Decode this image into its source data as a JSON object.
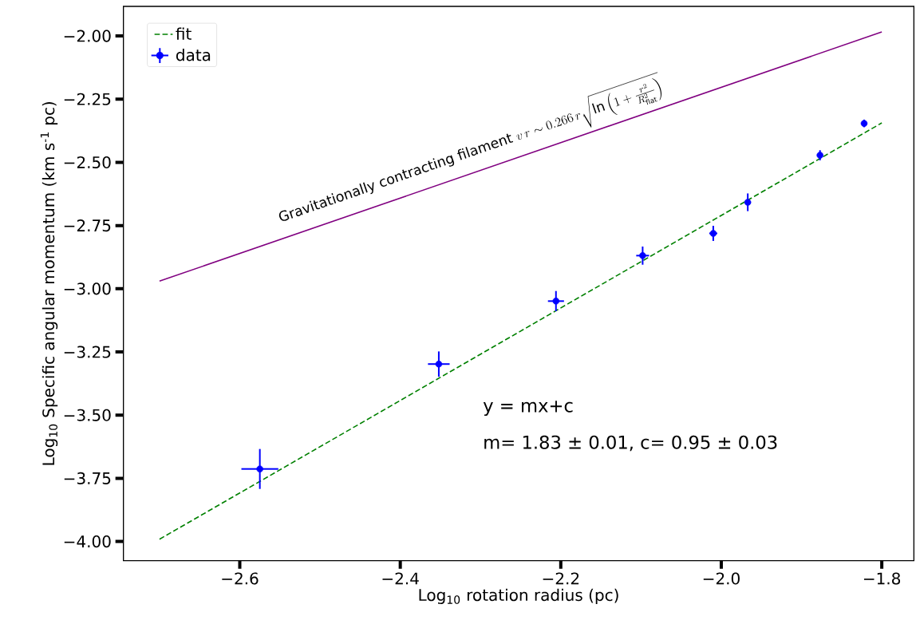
{
  "chart_data": {
    "type": "scatter",
    "xlabel": "Log$_{10}$ rotation radius (pc)",
    "ylabel": "Log$_{10}$ Specific angular momentum (km s$^{-1}$ pc)",
    "xlim": [
      -2.745,
      -1.76
    ],
    "ylim": [
      -4.076,
      -1.883
    ],
    "xticks": [
      {
        "value": -2.6,
        "label": "−2.6"
      },
      {
        "value": -2.4,
        "label": "−2.4"
      },
      {
        "value": -2.2,
        "label": "−2.2"
      },
      {
        "value": -2.0,
        "label": "−2.0"
      },
      {
        "value": -1.8,
        "label": "−1.8"
      }
    ],
    "yticks": [
      {
        "value": -4.0,
        "label": "−4.00"
      },
      {
        "value": -3.75,
        "label": "−3.75"
      },
      {
        "value": -3.5,
        "label": "−3.50"
      },
      {
        "value": -3.25,
        "label": "−3.25"
      },
      {
        "value": -3.0,
        "label": "−3.00"
      },
      {
        "value": -2.75,
        "label": "−2.75"
      },
      {
        "value": -2.5,
        "label": "−2.50"
      },
      {
        "value": -2.25,
        "label": "−2.25"
      },
      {
        "value": -2.0,
        "label": "−2.00"
      }
    ],
    "legend": "top left",
    "series": [
      {
        "name": "fit",
        "type": "line",
        "color": "#008000",
        "line_style": "dashed",
        "x": [
          -2.7,
          -1.8
        ],
        "values": [
          -3.991,
          -2.344
        ]
      },
      {
        "type": "line",
        "color": "#800080",
        "line_style": "solid",
        "x": [
          -2.7,
          -1.8
        ],
        "values": [
          -2.97,
          -1.984
        ]
      },
      {
        "name": "data",
        "color": "#0000ff",
        "marker": "circle",
        "x": [
          -2.575,
          -2.352,
          -2.206,
          -2.098,
          -2.01,
          -1.967,
          -1.877,
          -1.822
        ],
        "values": [
          -3.713,
          -3.298,
          -3.049,
          -2.869,
          -2.781,
          -2.658,
          -2.472,
          -2.346
        ],
        "errors": [
          0.079,
          0.05,
          0.04,
          0.036,
          0.03,
          0.035,
          0.02,
          0.015
        ],
        "xerrors": [
          0.023,
          0.0135,
          0.01,
          0.008,
          0.005,
          null,
          null,
          null
        ]
      }
    ],
    "annotations": [
      "Gravitationally contracting filament",
      "v\\,r \\sim 0.266\\,r\\sqrt{\\ln\\left(1+\\frac{r^2}{R_{\\mathrm{flat}}^2}\\right)}",
      "y = mx+c",
      "m= 1.83 ± 0.01, c= 0.95 ± 0.03"
    ]
  }
}
